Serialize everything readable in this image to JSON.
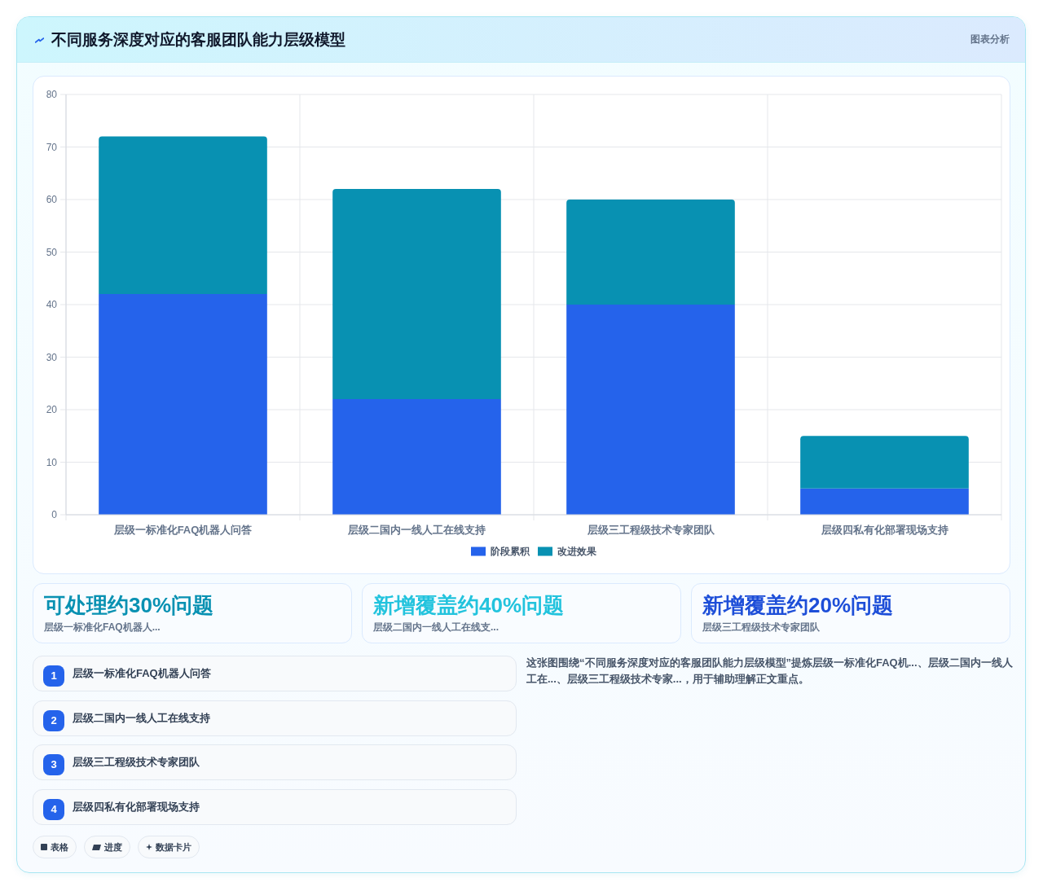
{
  "chart_data": {
    "type": "bar",
    "title": "不同服务深度对应的客服团队能力层级模型",
    "categories": [
      "层级一标准化FAQ机器人问答",
      "层级二国内一线人工在线支持",
      "层级三工程级技术专家团队",
      "层级四私有化部署现场支持"
    ],
    "stacked": true,
    "series": [
      {
        "name": "阶段累积",
        "color": "#2563eb",
        "values": [
          42,
          22,
          40,
          5
        ]
      },
      {
        "name": "改进效果",
        "color": "#0891b2",
        "values": [
          30,
          40,
          20,
          10
        ]
      }
    ],
    "ylim": [
      0,
      80
    ],
    "yticks": [
      0,
      10,
      20,
      30,
      40,
      50,
      60,
      70,
      80
    ],
    "grid": true,
    "legend": "bottom",
    "annotations": [
      "图表分析",
      "可处理约30%问题",
      "层级一标准化FAQ机器人...",
      "新增覆盖约40%问题",
      "层级二国内一线人工在线支...",
      "新增覆盖约20%问题",
      "层级三工程级技术专家团队",
      "1",
      "层级一标准化FAQ机器人问答",
      "2",
      "层级二国内一线人工在线支持",
      "3",
      "层级三工程级技术专家团队",
      "4",
      "层级四私有化部署现场支持",
      "这张图围绕“不同服务深度对应的客服团队能力层级模型”提炼层级一标准化FAQ机...、层级二国内一线人工在...、层级三工程级技术专家...，用于辅助理解正文重点。",
      "表格",
      "进度",
      "数据卡片"
    ]
  }
}
